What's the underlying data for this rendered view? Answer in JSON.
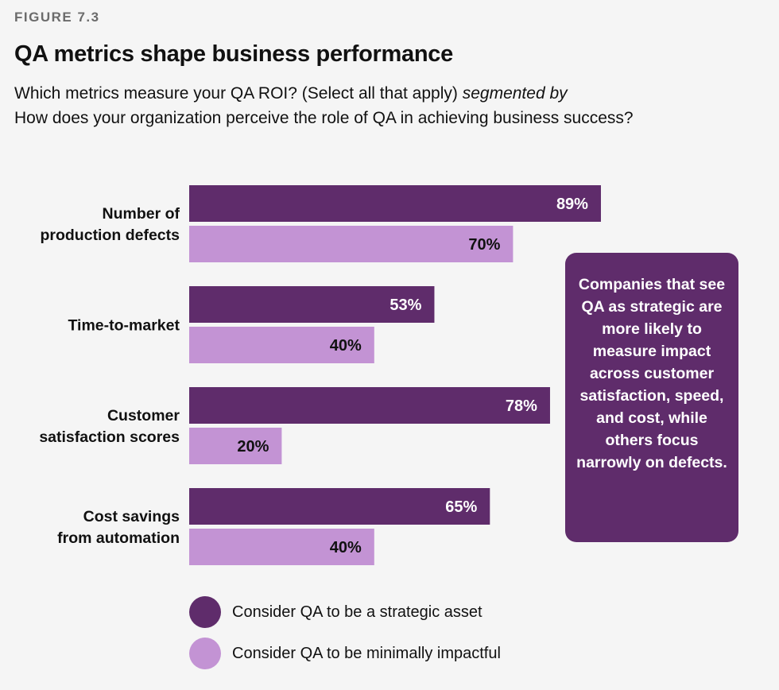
{
  "figure_label": "FIGURE 7.3",
  "title": "QA metrics shape business performance",
  "subtitle_part1": "Which metrics measure your QA ROI? (Select all that apply)",
  "subtitle_italic": "segmented by",
  "subtitle_part2": "How does your organization perceive the role of QA in achieving business success?",
  "callout": "Companies that see QA as strategic are more likely to measure impact across customer satisfaction, speed, and cost, while others focus narrowly on defects.",
  "colors": {
    "strategic": "#5f2c6b",
    "minimal": "#c393d4",
    "background": "#f5f5f5"
  },
  "chart_data": {
    "type": "bar",
    "orientation": "horizontal",
    "categories": [
      [
        "Number of",
        "production defects"
      ],
      [
        "Time-to-market"
      ],
      [
        "Customer",
        "satisfaction scores"
      ],
      [
        "Cost savings",
        "from automation"
      ]
    ],
    "series": [
      {
        "name": "Consider QA to be a strategic asset",
        "values": [
          89,
          53,
          78,
          65
        ],
        "labels": [
          "89%",
          "53%",
          "78%",
          "65%"
        ],
        "color": "#5f2c6b",
        "label_color": "#ffffff"
      },
      {
        "name": "Consider QA to be minimally impactful",
        "values": [
          70,
          40,
          20,
          40
        ],
        "labels": [
          "70%",
          "40%",
          "20%",
          "40%"
        ],
        "color": "#c393d4",
        "label_color": "#111111"
      }
    ],
    "xlim": [
      0,
      100
    ],
    "grid": false,
    "legend_position": "bottom"
  }
}
